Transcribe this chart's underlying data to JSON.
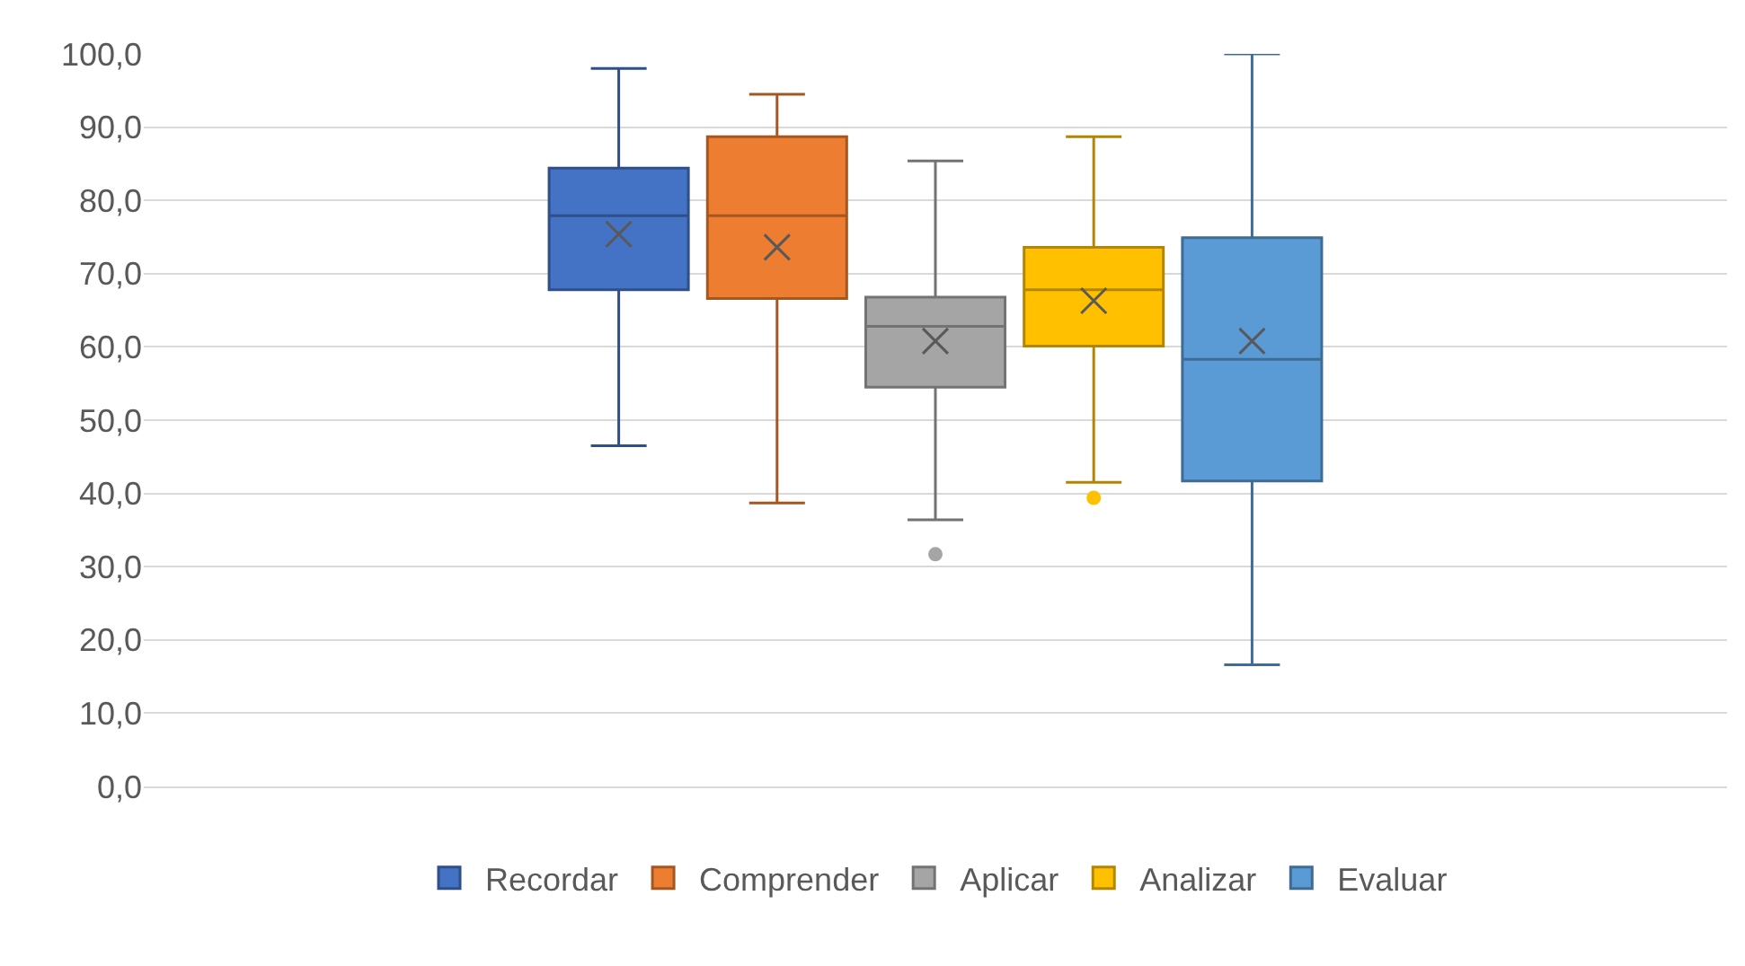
{
  "chart_data": {
    "type": "box",
    "categories": [
      null
    ],
    "series": [
      {
        "name": "Recordar",
        "color": "#4472c4",
        "boxes": [
          {
            "low": 46.5,
            "q1": 67.8,
            "median": 77.9,
            "q3": 84.4,
            "high": 98.0,
            "mean": 75.4
          }
        ]
      },
      {
        "name": "Comprender",
        "color": "#ed7d31",
        "boxes": [
          {
            "low": 38.7,
            "q1": 66.6,
            "median": 77.9,
            "q3": 88.7,
            "high": 94.5,
            "mean": 73.6
          }
        ]
      },
      {
        "name": "Aplicar",
        "color": "#a5a5a5",
        "boxes": [
          {
            "low": 36.4,
            "q1": 54.5,
            "median": 62.8,
            "q3": 66.8,
            "high": 85.4,
            "mean": 60.8,
            "outliers": [
              31.7
            ]
          }
        ]
      },
      {
        "name": "Analizar",
        "color": "#ffc000",
        "boxes": [
          {
            "low": 41.5,
            "q1": 60.1,
            "median": 67.8,
            "q3": 73.6,
            "high": 88.7,
            "mean": 66.3,
            "outliers": [
              39.4
            ]
          }
        ]
      },
      {
        "name": "Evaluar",
        "color": "#5b9bd5",
        "boxes": [
          {
            "low": 16.6,
            "q1": 41.7,
            "median": 58.3,
            "q3": 74.9,
            "high": 100.0,
            "mean": 60.8
          }
        ]
      }
    ],
    "ylim": [
      0,
      100
    ],
    "yticks": [
      {
        "value": 0,
        "label": "0,0"
      },
      {
        "value": 10,
        "label": "10,0"
      },
      {
        "value": 20,
        "label": "20,0"
      },
      {
        "value": 30,
        "label": "30,0"
      },
      {
        "value": 40,
        "label": "40,0"
      },
      {
        "value": 50,
        "label": "50,0"
      },
      {
        "value": 60,
        "label": "60,0"
      },
      {
        "value": 70,
        "label": "70,0"
      },
      {
        "value": 80,
        "label": "80,0"
      },
      {
        "value": 90,
        "label": "90,0"
      },
      {
        "value": 100,
        "label": "100,0"
      }
    ],
    "grid": "y",
    "legend": "bottom",
    "marker": "cross"
  }
}
